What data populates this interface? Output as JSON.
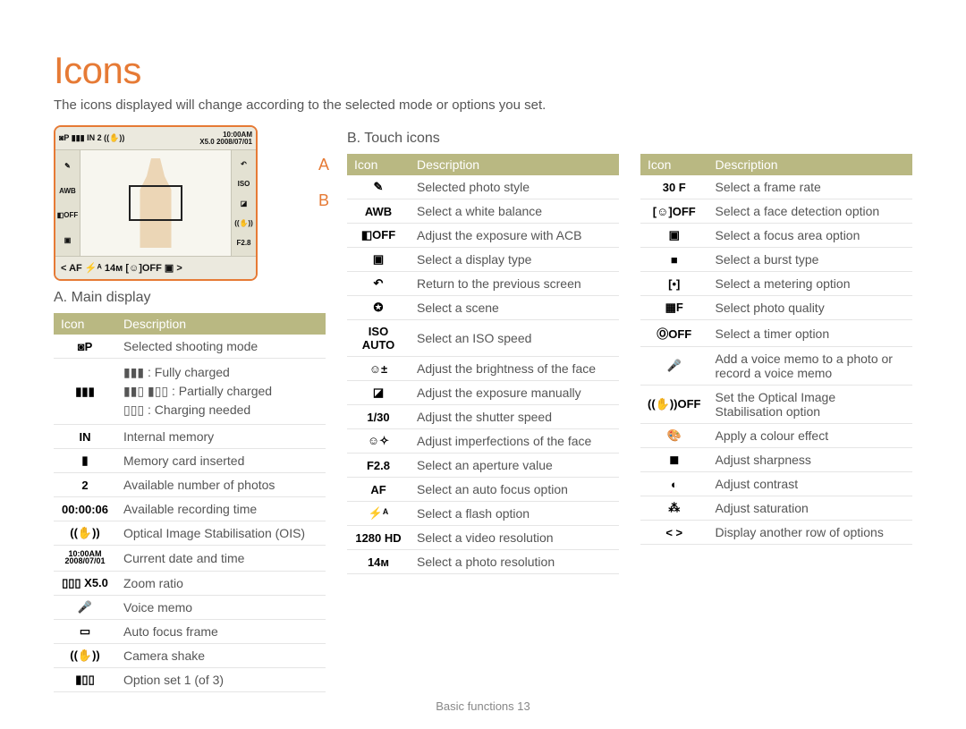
{
  "meta": {
    "accent": "#e67a35",
    "header_bg": "#b9b882",
    "header_fg": "#ffffff",
    "row_border": "#e5e5e5",
    "text": "#555555",
    "page_bg": "#ffffff"
  },
  "title": "Icons",
  "intro": "The icons displayed will change according to the selected mode or options you set.",
  "labels": {
    "A": "A",
    "B": "B"
  },
  "sectionA": {
    "heading": "A. Main display",
    "columns": {
      "icon": "Icon",
      "desc": "Description"
    },
    "rows": [
      {
        "glyph": "◙P",
        "desc": "Selected shooting mode"
      },
      {
        "glyph": "▮▮▮",
        "desc_html": "▮▮▮ : Fully charged\n▮▮▯ ▮▯▯ : Partially charged\n▯▯▯ : Charging needed"
      },
      {
        "glyph": "IN",
        "desc": "Internal memory"
      },
      {
        "glyph": "▮",
        "desc": "Memory card inserted"
      },
      {
        "glyph": "2",
        "desc": "Available number of photos"
      },
      {
        "glyph": "00:00:06",
        "desc": "Available recording time"
      },
      {
        "glyph": "((✋))",
        "desc": "Optical Image Stabilisation (OIS)"
      },
      {
        "glyph": "10:00AM 2008/07/01",
        "desc": "Current date and time"
      },
      {
        "glyph": "▯▯▯ X5.0",
        "desc": "Zoom ratio"
      },
      {
        "glyph": "🎤",
        "desc": "Voice memo"
      },
      {
        "glyph": "▭",
        "desc": "Auto focus frame"
      },
      {
        "glyph": "((✋))",
        "desc": "Camera shake"
      },
      {
        "glyph": "▮▯▯",
        "desc": "Option set 1 (of 3)"
      }
    ]
  },
  "sectionB": {
    "heading": "B. Touch icons",
    "columns": {
      "icon": "Icon",
      "desc": "Description"
    },
    "rows_left": [
      {
        "glyph": "✎",
        "desc": "Selected photo style"
      },
      {
        "glyph": "AWB",
        "desc": "Select a white balance"
      },
      {
        "glyph": "◧OFF",
        "desc": "Adjust the exposure with ACB"
      },
      {
        "glyph": "▣",
        "desc": "Select a display type"
      },
      {
        "glyph": "↶",
        "desc": "Return to the previous screen"
      },
      {
        "glyph": "✪",
        "desc": "Select a scene"
      },
      {
        "glyph": "ISO AUTO",
        "desc": "Select an ISO speed"
      },
      {
        "glyph": "☺±",
        "desc": "Adjust the brightness of the face"
      },
      {
        "glyph": "◪",
        "desc": "Adjust the exposure manually"
      },
      {
        "glyph": "1/30",
        "desc": "Adjust the shutter speed"
      },
      {
        "glyph": "☺✧",
        "desc": "Adjust imperfections of the face"
      },
      {
        "glyph": "F2.8",
        "desc": "Select an aperture value"
      },
      {
        "glyph": "AF",
        "desc": "Select an auto focus option"
      },
      {
        "glyph": "⚡ᴬ",
        "desc": "Select a flash option"
      },
      {
        "glyph": "1280 HD",
        "desc": "Select a video resolution"
      },
      {
        "glyph": "14ᴍ",
        "desc": "Select a photo resolution"
      }
    ],
    "rows_right": [
      {
        "glyph": "30 F",
        "desc": "Select a frame rate"
      },
      {
        "glyph": "[☺]OFF",
        "desc": "Select a face detection option"
      },
      {
        "glyph": "▣",
        "desc": "Select a focus area option"
      },
      {
        "glyph": "■",
        "desc": "Select a burst type"
      },
      {
        "glyph": "[•]",
        "desc": "Select a metering option"
      },
      {
        "glyph": "▦F",
        "desc": "Select photo quality"
      },
      {
        "glyph": "ⓄOFF",
        "desc": "Select a timer option"
      },
      {
        "glyph": "🎤",
        "desc": "Add a voice memo to a photo or record a voice memo"
      },
      {
        "glyph": "((✋))OFF",
        "desc": "Set the Optical Image Stabilisation option"
      },
      {
        "glyph": "🎨",
        "desc": "Apply a colour effect"
      },
      {
        "glyph": "◼",
        "desc": "Adjust sharpness"
      },
      {
        "glyph": "◐",
        "desc": "Adjust contrast"
      },
      {
        "glyph": "⁂",
        "desc": "Adjust saturation"
      },
      {
        "glyph": "< >",
        "desc": "Display another row of options"
      }
    ]
  },
  "mock": {
    "top_left": "◙P ▮▮▮ IN 2 ((✋))",
    "top_right_1": "10:00AM",
    "top_right_2": "X5.0 2008/07/01",
    "left_side": [
      "✎",
      "AWB",
      "◧OFF",
      "▣"
    ],
    "right_side": [
      "↶",
      "ISO",
      "◪",
      "((✋))",
      "F2.8"
    ],
    "bottom": "<   AF  ⚡ᴬ  14ᴍ  [☺]OFF  ▣   >",
    "return": "↶"
  },
  "footer": "Basic functions  13"
}
